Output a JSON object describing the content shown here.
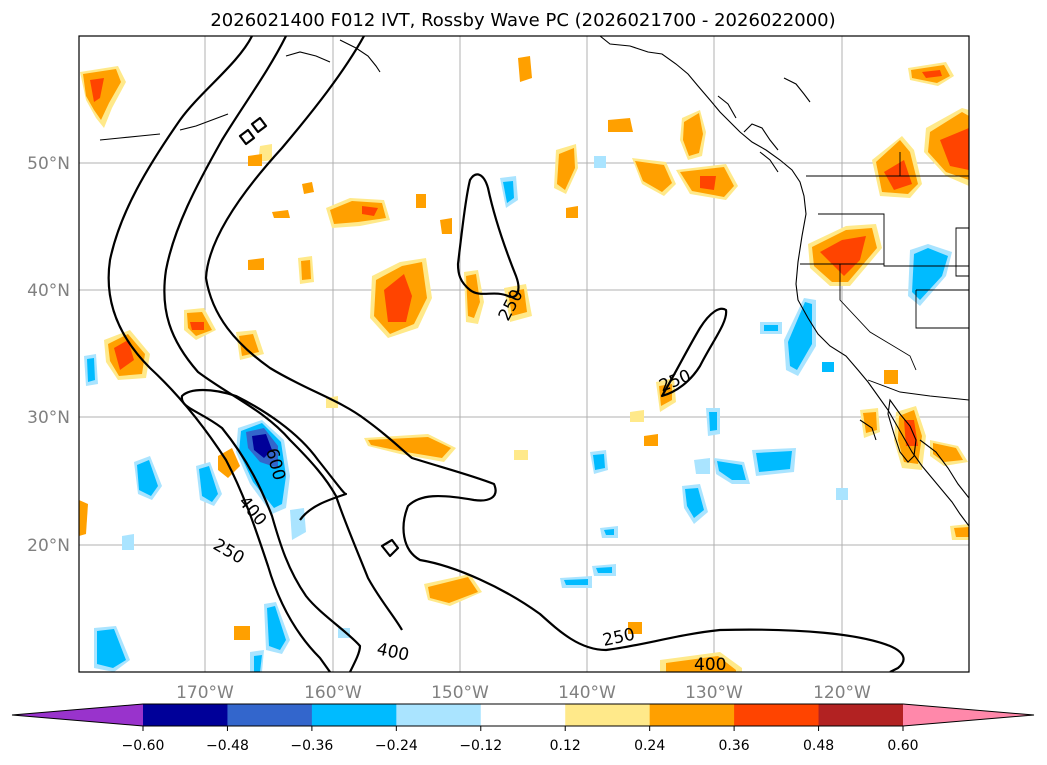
{
  "title": "2026021400 F012 IVT, Rossby Wave PC (2026021700 - 2026022000)",
  "map": {
    "lon_labels": [
      "170°W",
      "160°W",
      "150°W",
      "140°W",
      "130°W",
      "120°W"
    ],
    "lat_labels": [
      "50°N",
      "40°N",
      "30°N",
      "20°N"
    ],
    "ivt_contour_labels": [
      "250",
      "250",
      "250",
      "250",
      "400",
      "400",
      "400",
      "600"
    ]
  },
  "colorbar": {
    "ticks": [
      "−0.60",
      "−0.48",
      "−0.36",
      "−0.24",
      "−0.12",
      "0.12",
      "0.24",
      "0.36",
      "0.48",
      "0.60"
    ],
    "colors": [
      "#9933cc",
      "#000099",
      "#3366cc",
      "#00bbff",
      "#aae4ff",
      "#ffffff",
      "#ffe98a",
      "#ffa000",
      "#ff4400",
      "#b22222",
      "#ff88aa"
    ]
  },
  "chart_data": {
    "type": "heatmap",
    "title": "2026021400 F012 IVT, Rossby Wave PC (2026021700 - 2026022000)",
    "lon_range": [
      -180,
      -110
    ],
    "lat_range": [
      10,
      60
    ],
    "grid": true,
    "contour_levels_ivt": [
      250,
      400,
      600
    ],
    "colorbar_levels": [
      -0.6,
      -0.48,
      -0.36,
      -0.24,
      -0.12,
      0.12,
      0.24,
      0.36,
      0.48,
      0.6
    ]
  }
}
